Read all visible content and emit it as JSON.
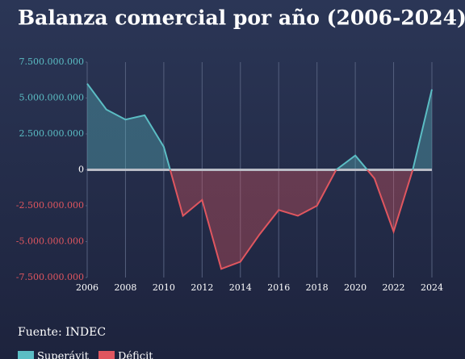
{
  "chart_data": {
    "type": "line",
    "title": "Balanza comercial por año (2006-2024)",
    "x": [
      2006,
      2007,
      2008,
      2009,
      2010,
      2011,
      2012,
      2013,
      2014,
      2015,
      2016,
      2017,
      2018,
      2019,
      2020,
      2021,
      2022,
      2023,
      2024
    ],
    "values": [
      6000000000,
      4200000000,
      3500000000,
      3800000000,
      1600000000,
      -3200000000,
      -2100000000,
      -6900000000,
      -6400000000,
      -4500000000,
      -2800000000,
      -3200000000,
      -2500000000,
      0,
      1000000000,
      -600000000,
      -4300000000,
      0,
      5600000000
    ],
    "xlim": [
      2006,
      2024
    ],
    "xticks": [
      2006,
      2008,
      2010,
      2012,
      2014,
      2016,
      2018,
      2020,
      2022,
      2024
    ],
    "ylim": [
      -7500000000,
      7500000000
    ],
    "yticks": [
      {
        "value": 7500000000,
        "label": "7.500.000.000"
      },
      {
        "value": 5000000000,
        "label": "5.000.000.000"
      },
      {
        "value": 2500000000,
        "label": "2.500.000.000"
      },
      0,
      {
        "value": -2500000000,
        "label": "-2.500.000.000"
      },
      {
        "value": -5000000000,
        "label": "-5.000.000.000"
      },
      {
        "value": -7500000000,
        "label": "-7.500.000.000"
      }
    ],
    "grid": true,
    "legend": [
      {
        "name": "Superávit",
        "color": "#5bbdc4"
      },
      {
        "name": "Déficit",
        "color": "#e0565f"
      }
    ],
    "source": "Fuente: INDEC"
  }
}
